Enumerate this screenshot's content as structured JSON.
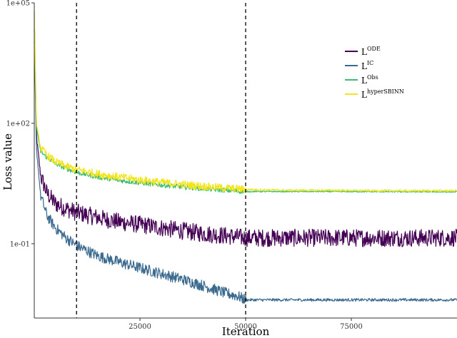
{
  "chart_data": {
    "type": "line",
    "title": "",
    "xlabel": "Iteration",
    "ylabel": "Loss value",
    "xlim": [
      0,
      100000
    ],
    "ylim_log10": [
      -2.85,
      5.0
    ],
    "y_scale": "log",
    "x_ticks": [
      25000,
      50000,
      75000
    ],
    "x_tick_labels": [
      "25000",
      "50000",
      "75000"
    ],
    "y_ticks": [
      100000,
      100,
      0.1
    ],
    "y_tick_labels": [
      "1e+05",
      "1e+02",
      "1e-01"
    ],
    "vlines": [
      10000,
      50000
    ],
    "grid": false,
    "legend_position": "top-right",
    "series": [
      {
        "name": "L^ODE",
        "label_base": "L",
        "label_sup": "ODE",
        "color": "#440154",
        "x": [
          0,
          500,
          1500,
          3000,
          5000,
          7500,
          10000,
          15000,
          20000,
          25000,
          30000,
          35000,
          40000,
          45000,
          50000,
          60000,
          70000,
          80000,
          90000,
          100000
        ],
        "y": [
          20000,
          50,
          5,
          1.8,
          1.0,
          0.75,
          0.6,
          0.45,
          0.35,
          0.3,
          0.25,
          0.21,
          0.18,
          0.16,
          0.14,
          0.14,
          0.14,
          0.14,
          0.14,
          0.14
        ],
        "noise_log10": 0.22
      },
      {
        "name": "L^IC",
        "label_base": "L",
        "label_sup": "IC",
        "color": "#3b6a8f",
        "x": [
          0,
          500,
          1500,
          3000,
          5000,
          7500,
          10000,
          15000,
          20000,
          25000,
          30000,
          35000,
          40000,
          45000,
          48000,
          50000,
          60000,
          70000,
          80000,
          90000,
          100000
        ],
        "y": [
          10000,
          25,
          1.6,
          0.5,
          0.25,
          0.14,
          0.09,
          0.05,
          0.035,
          0.025,
          0.018,
          0.013,
          0.009,
          0.006,
          0.005,
          0.004,
          0.004,
          0.004,
          0.004,
          0.004,
          0.004
        ],
        "noise_log10": 0.14
      },
      {
        "name": "L^Obs",
        "label_base": "L",
        "label_sup": "Obs",
        "color": "#3cbc74",
        "x": [
          0,
          500,
          1500,
          3000,
          5000,
          7500,
          10000,
          15000,
          20000,
          25000,
          30000,
          35000,
          40000,
          45000,
          50000,
          60000,
          70000,
          80000,
          90000,
          100000
        ],
        "y": [
          60000,
          80,
          20,
          14,
          10,
          7.5,
          6,
          4.6,
          3.8,
          3.3,
          2.9,
          2.6,
          2.35,
          2.15,
          2.0,
          2.0,
          2.0,
          1.98,
          1.97,
          1.96
        ],
        "noise_log10": 0.06
      },
      {
        "name": "L^hyperSBINN",
        "label_base": "L",
        "label_sup": "hyperSBINN",
        "color": "#f2e51d",
        "x": [
          0,
          500,
          1500,
          3000,
          5000,
          7500,
          10000,
          15000,
          20000,
          25000,
          30000,
          35000,
          40000,
          45000,
          50000,
          60000,
          70000,
          80000,
          90000,
          100000
        ],
        "y": [
          70000,
          100,
          25,
          16,
          11,
          8.5,
          7,
          5.5,
          4.6,
          3.9,
          3.4,
          3.0,
          2.7,
          2.45,
          2.25,
          2.15,
          2.15,
          2.1,
          2.1,
          2.1
        ],
        "noise_log10": 0.1
      }
    ]
  }
}
